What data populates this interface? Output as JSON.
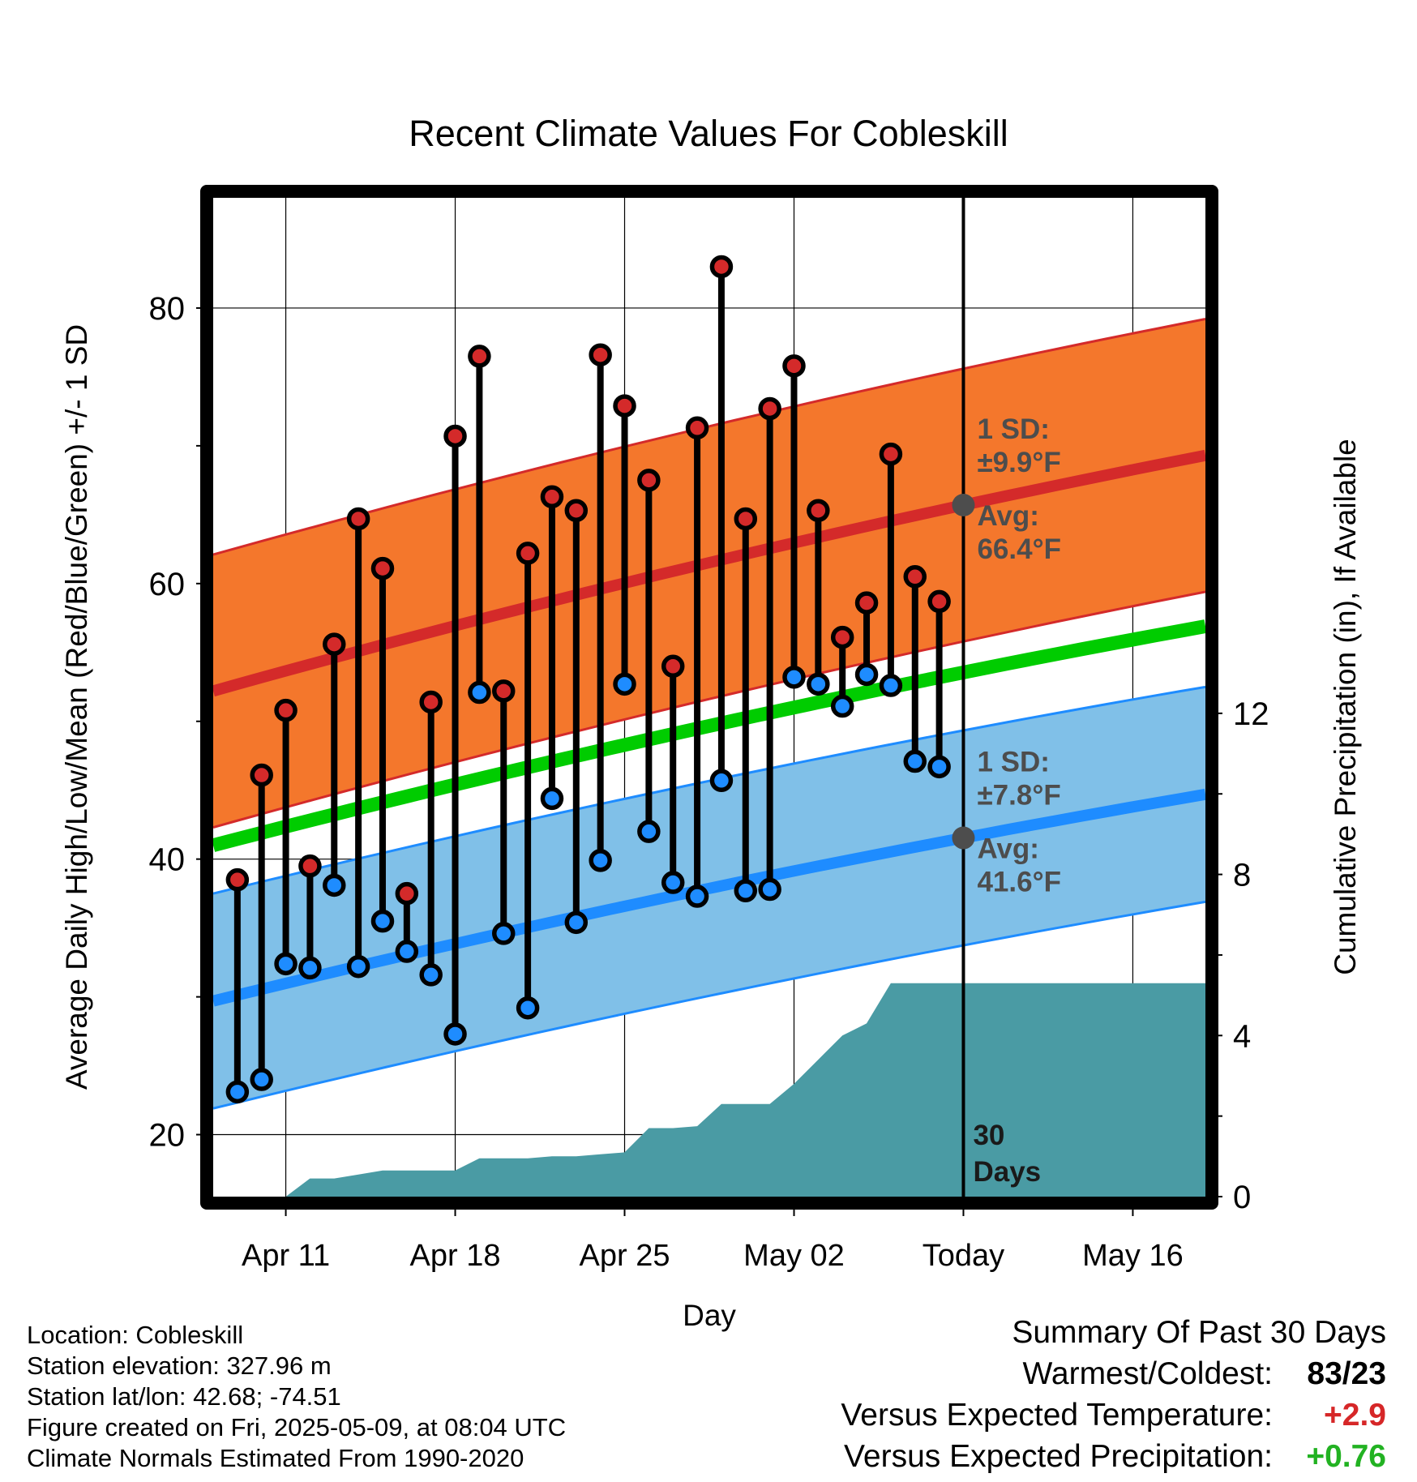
{
  "chart_data": {
    "type": "line",
    "title": "Recent Climate Values For Cobleskill",
    "xlabel": "Day",
    "ylabel": "Average Daily High/Low/Mean (Red/Blue/Green) +/- 1 SD",
    "y2label": "Cumulative Precipitation (in), If Available",
    "x_tick_labels": [
      "Apr 11",
      "Apr 18",
      "Apr 25",
      "May 02",
      "Today",
      "May 16"
    ],
    "y_ticks": [
      "20",
      "40",
      "60",
      "80"
    ],
    "y2_ticks": [
      "0",
      "4",
      "8",
      "12"
    ],
    "ylim": [
      15.5,
      88
    ],
    "y2lim": [
      0,
      24.8
    ],
    "xlim": [
      "2025-04-08",
      "2025-05-19"
    ],
    "grid": true,
    "today": "2025-05-09",
    "today_label": [
      "30",
      "Days"
    ],
    "days": [
      "2025-04-09",
      "2025-04-10",
      "2025-04-11",
      "2025-04-12",
      "2025-04-13",
      "2025-04-14",
      "2025-04-15",
      "2025-04-16",
      "2025-04-17",
      "2025-04-18",
      "2025-04-19",
      "2025-04-20",
      "2025-04-21",
      "2025-04-22",
      "2025-04-23",
      "2025-04-24",
      "2025-04-25",
      "2025-04-26",
      "2025-04-27",
      "2025-04-28",
      "2025-04-29",
      "2025-04-30",
      "2025-05-01",
      "2025-05-02",
      "2025-05-03",
      "2025-05-04",
      "2025-05-05",
      "2025-05-06",
      "2025-05-07",
      "2025-05-08"
    ],
    "daily_high": [
      38.5,
      46.1,
      50.8,
      39.5,
      55.6,
      64.7,
      61.1,
      37.5,
      51.4,
      70.7,
      76.5,
      52.2,
      62.2,
      66.3,
      65.3,
      76.6,
      72.9,
      67.5,
      54.0,
      71.3,
      83.0,
      64.7,
      72.7,
      75.8,
      65.3,
      56.1,
      58.6,
      69.4,
      60.5,
      58.7
    ],
    "daily_low": [
      23.1,
      24.0,
      32.4,
      32.1,
      38.1,
      32.2,
      35.5,
      33.3,
      31.6,
      27.3,
      52.1,
      34.6,
      29.2,
      44.4,
      35.4,
      39.9,
      52.7,
      42.0,
      38.3,
      37.3,
      45.7,
      37.7,
      37.8,
      53.2,
      52.7,
      51.1,
      53.4,
      52.6,
      47.1,
      46.7
    ],
    "series": [
      {
        "name": "1 SD",
        "sd": "±9.9°F",
        "avg": "66.4°F",
        "color": "#d42a2a",
        "band_color": "#f4772c",
        "mean": [
          52.2,
          69.3
        ],
        "band": 9.9
      },
      {
        "name": "1 SD",
        "sd": "±7.8°F",
        "avg": "41.6°F",
        "color": "#1e8cff",
        "band_color": "#80c0e8",
        "mean": [
          29.7,
          44.7
        ],
        "band": 7.8
      },
      {
        "color": "#00cc00",
        "mean": [
          41.0,
          56.9
        ]
      }
    ],
    "precipitation": {
      "color": "#4a9ba4",
      "x": [
        "2025-04-08",
        "2025-04-10",
        "2025-04-11",
        "2025-04-12",
        "2025-04-13",
        "2025-04-14",
        "2025-04-15",
        "2025-04-16",
        "2025-04-17",
        "2025-04-18",
        "2025-04-19",
        "2025-04-20",
        "2025-04-21",
        "2025-04-22",
        "2025-04-23",
        "2025-04-24",
        "2025-04-25",
        "2025-04-26",
        "2025-04-27",
        "2025-04-28",
        "2025-04-29",
        "2025-04-30",
        "2025-05-01",
        "2025-05-02",
        "2025-05-03",
        "2025-05-04",
        "2025-05-05",
        "2025-05-06",
        "2025-05-07",
        "2025-05-08",
        "2025-05-09",
        "2025-05-19"
      ],
      "y": [
        0,
        0,
        0,
        0.45,
        0.45,
        0.55,
        0.65,
        0.65,
        0.65,
        0.65,
        0.95,
        0.95,
        0.95,
        1.0,
        1.0,
        1.05,
        1.1,
        1.7,
        1.7,
        1.75,
        2.3,
        2.3,
        2.3,
        2.8,
        3.4,
        4.0,
        4.3,
        5.3,
        5.3,
        5.3,
        5.3,
        5.3
      ]
    }
  },
  "summary": {
    "title": "Summary Of Past 30 Days",
    "rows": [
      {
        "label": "Warmest/Coldest:",
        "value": "83/23",
        "color": "#000000"
      },
      {
        "label": "Versus Expected Temperature:",
        "value": "+2.9",
        "color": "#d62728"
      },
      {
        "label": "Versus Expected Precipitation:",
        "value": "+0.76",
        "color": "#22b222"
      }
    ]
  },
  "footer": {
    "location": "Location: Cobleskill",
    "elevation": "Station elevation: 327.96 m",
    "latlon": "Station lat/lon: 42.68; -74.51",
    "created": "Figure created on Fri, 2025-05-09, at 08:04 UTC",
    "normals": "Climate Normals Estimated From 1990-2020"
  }
}
